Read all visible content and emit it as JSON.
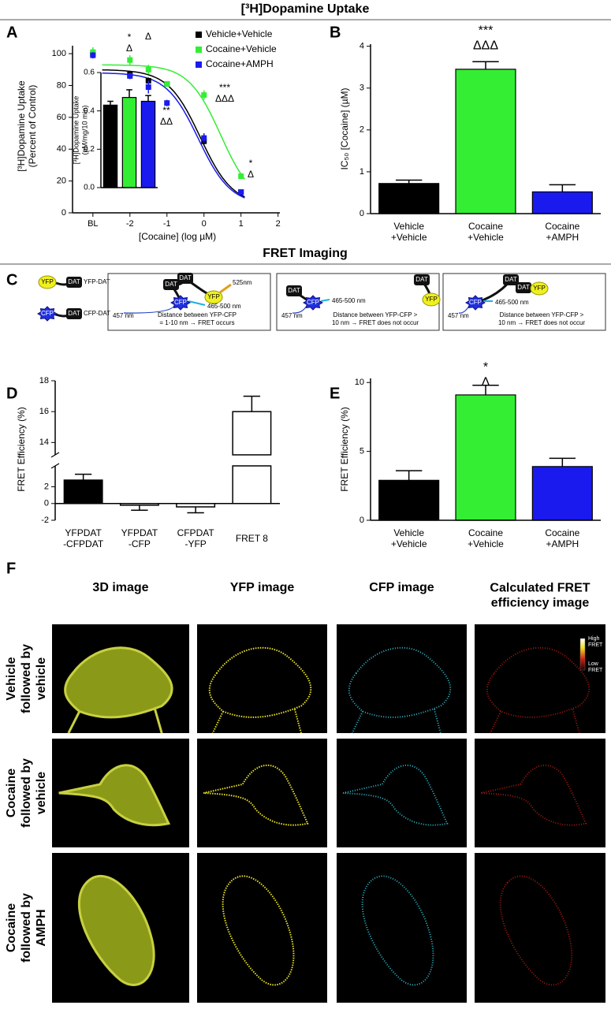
{
  "header": {
    "uptake_title": "[³H]Dopamine Uptake",
    "fret_title": "FRET Imaging"
  },
  "panel_labels": [
    "A",
    "B",
    "C",
    "D",
    "E",
    "F"
  ],
  "chart_data": [
    {
      "type": "line",
      "ylabel": "[³H]Dopamine Uptake\n(Percent of Control)",
      "xlabel": "[Cocaine] (log µM)",
      "xlim": [
        -3.55,
        2.05
      ],
      "xticks": [
        {
          "value": -3,
          "label": "BL"
        },
        -2,
        -1,
        0,
        1,
        2
      ],
      "ylim": [
        0,
        105
      ],
      "yticks": [
        0,
        20,
        40,
        60,
        80,
        100
      ],
      "x": [
        -3,
        -2,
        -1.5,
        -1,
        0,
        1
      ],
      "series": [
        {
          "name": "Vehicle+Vehicle",
          "color": "#000000",
          "values": [
            100,
            87,
            83,
            81,
            45,
            13
          ],
          "errors": [
            2,
            2,
            2,
            1,
            2,
            1
          ],
          "fit": {
            "top": 90,
            "bottom": 5,
            "logIC50": -0.1
          }
        },
        {
          "name": "Cocaine+Vehicle",
          "color": "#33ee33",
          "values": [
            101,
            96,
            90,
            81,
            74,
            23
          ],
          "errors": [
            3,
            3,
            3,
            1,
            3,
            1
          ],
          "fit": {
            "top": 93,
            "bottom": 5,
            "logIC50": 0.45
          }
        },
        {
          "name": "Cocaine+AMPH",
          "color": "#1a1aee",
          "values": [
            99,
            86,
            79,
            69,
            47,
            13
          ],
          "errors": [
            2,
            2,
            4,
            2,
            3,
            1
          ],
          "fit": {
            "top": 88,
            "bottom": 5,
            "logIC50": -0.15
          }
        }
      ],
      "legend": "upper right",
      "annotations": [
        "*\nΔ",
        "Δ",
        "**\nΔΔ",
        "***\nΔΔΔ",
        "*\nΔ"
      ]
    },
    {
      "type": "bar",
      "ylabel": "[³H]Dopamine Uptake\n(pM/mg/10 min)",
      "ylim": [
        0,
        0.6
      ],
      "yticks": [
        {
          "value": 0,
          "label": "0.0"
        },
        0.2,
        0.4,
        0.6
      ],
      "values": [
        0.43,
        0.47,
        0.45
      ],
      "errors": [
        0.02,
        0.04,
        0.03
      ],
      "colors": [
        "#000000",
        "#33ee33",
        "#1a1aee"
      ]
    },
    {
      "type": "bar",
      "ylabel": "IC₅₀ [Cocaine] (µM)",
      "categories": [
        "Vehicle\n+Vehicle",
        "Cocaine\n+Vehicle",
        "Cocaine\n+AMPH"
      ],
      "ylim": [
        0,
        4.05
      ],
      "yticks": [
        0,
        1,
        2,
        3,
        4
      ],
      "values": [
        0.72,
        3.45,
        0.52
      ],
      "errors": [
        0.08,
        0.18,
        0.17
      ],
      "colors": [
        "#000000",
        "#33ee33",
        "#1a1aee"
      ],
      "annotations": [
        "***\nΔΔΔ"
      ]
    },
    {
      "type": "broken_bar",
      "ylabel": "FRET Efficiency (%)",
      "categories": [
        "YFPDAT\n-CFPDAT",
        "YFPDAT\n-CFP",
        "CFPDAT\n-YFP",
        "FRET 8"
      ],
      "ylim_lower": [
        -2,
        4.5
      ],
      "ylim_upper": [
        13.2,
        18
      ],
      "yticks": [
        -2,
        0,
        2,
        14,
        16,
        18
      ],
      "values": [
        2.8,
        -0.2,
        -0.4,
        16
      ],
      "errors": [
        0.7,
        0.6,
        0.7,
        1.0
      ],
      "colors": [
        "#000000",
        "#ffffff",
        "#ffffff",
        "#ffffff"
      ]
    },
    {
      "type": "bar",
      "ylabel": "FRET Efficiency (%)",
      "categories": [
        "Vehicle\n+Vehicle",
        "Cocaine\n+Vehicle",
        "Cocaine\n+AMPH"
      ],
      "ylim": [
        0,
        10.3
      ],
      "yticks": [
        0,
        5,
        10
      ],
      "values": [
        2.9,
        9.1,
        3.9
      ],
      "errors": [
        0.7,
        0.7,
        0.6
      ],
      "colors": [
        "#000000",
        "#33ee33",
        "#1a1aee"
      ],
      "annotations": [
        "*\nΔ"
      ]
    }
  ],
  "diagram": {
    "legend": [
      {
        "tag": "YFP",
        "dat": "DAT",
        "label": "YFP-DAT"
      },
      {
        "tag": "CFP",
        "dat": "DAT",
        "label": "CFP-DAT"
      }
    ],
    "boxes": [
      {
        "dat": [
          "DAT",
          "DAT"
        ],
        "yfp": "YFP",
        "cfp": "CFP",
        "fret": "525nm",
        "emission": "465-500 nm",
        "excitation": "457 nm",
        "caption": "Distance between YFP-CFP\n= 1-10 nm → FRET occurs"
      },
      {
        "dat": [
          "DAT",
          "DAT"
        ],
        "yfp": "YFP",
        "cfp": "CFP",
        "emission": "465-500 nm",
        "excitation": "457 nm",
        "caption": "Distance between YFP-CFP >\n10 nm → FRET does not occur"
      },
      {
        "dat": [
          "DAT",
          "DAT"
        ],
        "yfp": "YFP",
        "cfp": "CFP",
        "emission": "465-500 nm",
        "excitation": "457 nm",
        "caption": "Distance between YFP-CFP >\n10 nm → FRET does not occur"
      }
    ]
  },
  "images": {
    "columns": [
      "3D image",
      "YFP image",
      "CFP image",
      "Calculated FRET\nefficiency image"
    ],
    "rows": [
      "Vehicle\nfollowed by\nvehicle",
      "Cocaine\nfollowed by\nvehicle",
      "Cocaine\nfollowed by\nAMPH"
    ],
    "colorbar": {
      "high": "High\nFRET",
      "low": "Low\nFRET"
    }
  }
}
